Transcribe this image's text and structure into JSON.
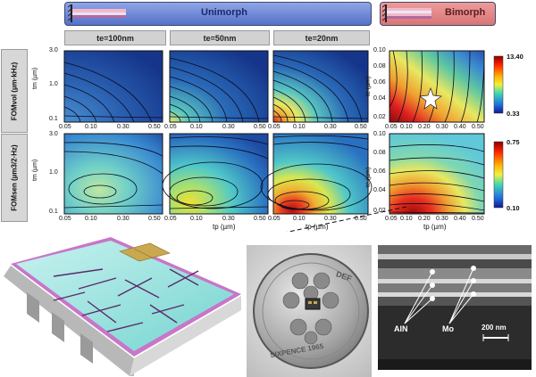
{
  "banners": {
    "unimorph": "Unimorph",
    "bimorph": "Bimorph"
  },
  "column_headers": [
    "te=100nm",
    "te=50nm",
    "te=20nm"
  ],
  "row_labels": {
    "vol": "FOMvol (µm·kHz)",
    "sen": "FOMsen (µm3/2·Hz)"
  },
  "axes": {
    "x_ticks": [
      "0.05",
      "0.10",
      "0.30",
      "0.50"
    ],
    "x_ticks_bimorph": [
      "0.05",
      "0.10",
      "0.20",
      "0.30",
      "0.40",
      "0.50"
    ],
    "y_ticks_unimorph": [
      "3.0",
      "1.0",
      "0.1"
    ],
    "y_ticks_bimorph": [
      "0.10",
      "0.08",
      "0.06",
      "0.04",
      "0.02"
    ],
    "x_label": "tp (µm)",
    "y_label_unimorph": "tm (µm)",
    "y_label_bimorph": "te (µm)"
  },
  "colorbars": {
    "vol": {
      "max": "13.40",
      "min": "0.33"
    },
    "sen": {
      "max": "0.75",
      "min": "0.10"
    }
  },
  "sem": {
    "aln_label": "AlN",
    "mo_label": "Mo",
    "scale_label": "200 nm"
  },
  "coin_text": {
    "top": "DEF",
    "bottom": "SIXPENCE 1965"
  },
  "colors": {
    "unimorph_banner": "#6a84d6",
    "bimorph_banner": "#e08585",
    "device_cyan": "#8ee0dc",
    "device_edge": "#c876c8"
  }
}
